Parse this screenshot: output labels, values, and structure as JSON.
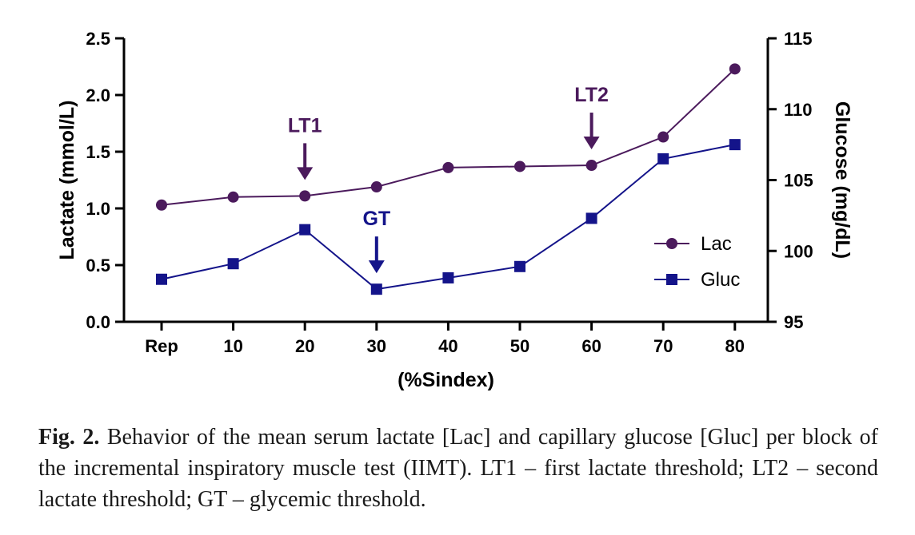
{
  "chart_data": {
    "type": "line",
    "title": "",
    "xlabel": "(%Sindex)",
    "ylabel_left": "Lactate (mmol/L)",
    "ylabel_right": "Glucose (mg/dL)",
    "categories": [
      "Rep",
      "10",
      "20",
      "30",
      "40",
      "50",
      "60",
      "70",
      "80"
    ],
    "ylim_left": [
      0.0,
      2.5
    ],
    "ylim_right": [
      95,
      115
    ],
    "yticks_left": [
      "0.0",
      "0.5",
      "1.0",
      "1.5",
      "2.0",
      "2.5"
    ],
    "yticks_right": [
      "95",
      "100",
      "105",
      "110",
      "115"
    ],
    "grid": false,
    "legend_position": "right-center",
    "series": [
      {
        "name": "Lac",
        "axis": "left",
        "marker": "circle",
        "color": "#4b1a5c",
        "values": [
          1.03,
          1.1,
          1.11,
          1.19,
          1.36,
          1.37,
          1.38,
          1.63,
          2.23
        ]
      },
      {
        "name": "Gluc",
        "axis": "right",
        "marker": "square",
        "color": "#14148a",
        "values": [
          98.0,
          99.1,
          101.5,
          97.3,
          98.1,
          98.9,
          102.3,
          106.5,
          107.5
        ]
      }
    ],
    "annotations": [
      {
        "label": "LT1",
        "category": "20",
        "series": "Lac",
        "color": "#4b1a5c"
      },
      {
        "label": "GT",
        "category": "30",
        "series": "Gluc",
        "color": "#14148a"
      },
      {
        "label": "LT2",
        "category": "60",
        "series": "Lac",
        "color": "#4b1a5c"
      }
    ]
  },
  "caption": {
    "label": "Fig. 2.",
    "text": "Behavior of the mean serum lactate [Lac] and capillary glucose [Gluc] per block of the incremental inspiratory muscle test (IIMT). LT1 – first lactate threshold; LT2 – second lactate threshold; GT – glycemic threshold."
  }
}
